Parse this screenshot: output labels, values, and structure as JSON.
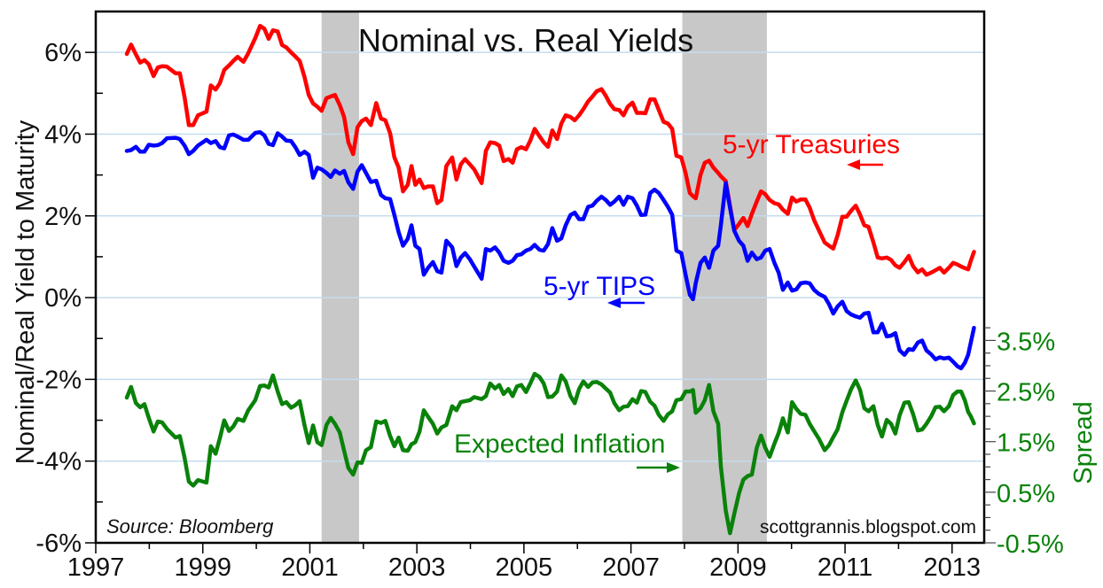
{
  "chart_data": {
    "type": "line",
    "title": "Nominal vs. Real Yields",
    "ylabel": "Nominal/Real Yield to Maturity",
    "y2label": "Spread",
    "source": "Source: Bloomberg",
    "credit": "scottgrannis.blogspot.com",
    "xlim": [
      1997,
      2013.6
    ],
    "ylim": [
      -6,
      7
    ],
    "y2lim": [
      -0.5,
      10
    ],
    "grid": "horizontal at left-axis major ticks",
    "x_ticks": [
      "1997",
      "1999",
      "2001",
      "2003",
      "2005",
      "2007",
      "2009",
      "2011",
      "2013"
    ],
    "y_ticks": [
      "-6%",
      "-4%",
      "-2%",
      "0%",
      "2%",
      "4%",
      "6%"
    ],
    "y_tick_values": [
      -6,
      -4,
      -2,
      0,
      2,
      4,
      6
    ],
    "y2_ticks": [
      "-0.5%",
      "0.5%",
      "1.5%",
      "2.5%",
      "3.5%"
    ],
    "y2_tick_values": [
      -0.5,
      0.5,
      1.5,
      2.5,
      3.5
    ],
    "recessions": [
      [
        2001.22,
        2001.92
      ],
      [
        2007.96,
        2009.54
      ]
    ],
    "annotations": {
      "treasury": "5-yr Treasuries",
      "tips": "5-yr TIPS",
      "spread": "Expected Inflation"
    },
    "colors": {
      "treasury": "#ff0000",
      "tips": "#0000ff",
      "spread": "#0a820a",
      "recession": "#c8c8c8",
      "grid": "#c4dcef"
    },
    "x": [
      1997.58,
      1997.66,
      1997.75,
      1997.83,
      1997.91,
      1997.99,
      1998.08,
      1998.16,
      1998.24,
      1998.33,
      1998.49,
      1998.57,
      1998.66,
      1998.74,
      1998.82,
      1998.91,
      1999.07,
      1999.15,
      1999.24,
      1999.32,
      1999.4,
      1999.49,
      1999.57,
      1999.65,
      1999.76,
      1999.85,
      1999.98,
      2000.07,
      2000.15,
      2000.23,
      2000.31,
      2000.4,
      2000.48,
      2000.56,
      2000.65,
      2000.73,
      2000.81,
      2000.9,
      2000.98,
      2001.06,
      2001.14,
      2001.22,
      2001.31,
      2001.39,
      2001.47,
      2001.56,
      2001.64,
      2001.72,
      2001.81,
      2001.89,
      2001.97,
      2002.05,
      2002.14,
      2002.24,
      2002.33,
      2002.41,
      2002.5,
      2002.58,
      2002.66,
      2002.74,
      2002.83,
      2002.9,
      2002.97,
      2003.05,
      2003.13,
      2003.21,
      2003.3,
      2003.38,
      2003.46,
      2003.55,
      2003.66,
      2003.74,
      2003.82,
      2003.9,
      2003.99,
      2004.07,
      2004.21,
      2004.29,
      2004.37,
      2004.46,
      2004.54,
      2004.62,
      2004.71,
      2004.79,
      2004.87,
      2004.95,
      2005.04,
      2005.12,
      2005.2,
      2005.29,
      2005.37,
      2005.45,
      2005.53,
      2005.62,
      2005.7,
      2005.78,
      2005.87,
      2005.95,
      2006.03,
      2006.11,
      2006.2,
      2006.28,
      2006.36,
      2006.45,
      2006.53,
      2006.61,
      2006.69,
      2006.78,
      2006.86,
      2006.94,
      2007.03,
      2007.11,
      2007.19,
      2007.27,
      2007.36,
      2007.44,
      2007.52,
      2007.61,
      2007.69,
      2007.77,
      2007.85,
      2007.94,
      2008.02,
      2008.1,
      2008.16,
      2008.21,
      2008.3,
      2008.38,
      2008.46,
      2008.54,
      2008.63,
      2008.68,
      2008.77,
      2008.85,
      2008.93,
      2009.02,
      2009.1,
      2009.18,
      2009.26,
      2009.35,
      2009.43,
      2009.51,
      2009.59,
      2009.68,
      2009.76,
      2009.84,
      2009.93,
      2010.01,
      2010.09,
      2010.17,
      2010.26,
      2010.34,
      2010.42,
      2010.51,
      2010.62,
      2010.7,
      2010.78,
      2010.86,
      2010.95,
      2011.03,
      2011.11,
      2011.2,
      2011.28,
      2011.36,
      2011.44,
      2011.53,
      2011.61,
      2011.69,
      2011.78,
      2011.86,
      2011.94,
      2012.02,
      2012.11,
      2012.19,
      2012.27,
      2012.36,
      2012.44,
      2012.52,
      2012.61,
      2012.69,
      2012.77,
      2012.85,
      2012.94,
      2013.02,
      2013.1,
      2013.17,
      2013.24,
      2013.3,
      2013.35,
      2013.41
    ],
    "series": [
      {
        "name": "5-yr Treasuries",
        "axis": "left",
        "values": [
          5.96,
          6.19,
          5.95,
          5.75,
          5.81,
          5.71,
          5.42,
          5.63,
          5.66,
          5.65,
          5.49,
          5.49,
          4.9,
          4.22,
          4.22,
          4.46,
          4.55,
          5.19,
          5.09,
          5.25,
          5.57,
          5.68,
          5.79,
          5.89,
          5.77,
          5.98,
          6.35,
          6.65,
          6.58,
          6.33,
          6.54,
          6.51,
          6.18,
          6.12,
          6.0,
          5.9,
          5.79,
          5.4,
          4.96,
          4.75,
          4.67,
          4.57,
          4.88,
          4.92,
          4.96,
          4.71,
          4.42,
          3.8,
          3.51,
          4.17,
          4.32,
          4.38,
          4.22,
          4.76,
          4.38,
          4.34,
          4.02,
          3.43,
          3.18,
          2.6,
          2.76,
          3.22,
          2.76,
          2.89,
          2.68,
          2.72,
          2.72,
          2.31,
          2.39,
          3.22,
          3.43,
          2.89,
          3.26,
          3.39,
          3.26,
          3.14,
          2.8,
          3.59,
          3.8,
          3.78,
          3.72,
          3.34,
          3.39,
          3.3,
          3.63,
          3.68,
          3.63,
          3.84,
          4.13,
          3.95,
          3.8,
          3.69,
          4.09,
          3.88,
          4.26,
          4.46,
          4.42,
          4.34,
          4.46,
          4.61,
          4.8,
          4.92,
          5.05,
          5.1,
          4.94,
          4.74,
          4.61,
          4.59,
          4.46,
          4.67,
          4.77,
          4.52,
          4.52,
          4.51,
          4.85,
          4.85,
          4.59,
          4.3,
          4.26,
          4.13,
          3.47,
          3.43,
          3.05,
          2.56,
          2.48,
          2.43,
          3.01,
          3.3,
          3.35,
          3.18,
          3.05,
          2.97,
          2.85,
          2.25,
          1.65,
          1.8,
          1.95,
          1.75,
          2.05,
          2.35,
          2.6,
          2.53,
          2.39,
          2.31,
          2.28,
          2.15,
          2.05,
          2.45,
          2.35,
          2.4,
          2.4,
          2.2,
          1.9,
          1.65,
          1.35,
          1.27,
          1.2,
          1.52,
          1.98,
          1.98,
          2.12,
          2.25,
          2.03,
          1.77,
          1.73,
          1.35,
          0.98,
          0.96,
          0.98,
          0.92,
          0.79,
          0.73,
          0.87,
          1.02,
          0.77,
          0.62,
          0.69,
          0.56,
          0.61,
          0.67,
          0.73,
          0.61,
          0.73,
          0.85,
          0.81,
          0.76,
          0.72,
          0.69,
          0.9,
          1.12
        ]
      },
      {
        "name": "5-yr TIPS",
        "axis": "left",
        "values": [
          3.59,
          3.61,
          3.69,
          3.57,
          3.57,
          3.74,
          3.72,
          3.73,
          3.78,
          3.9,
          3.91,
          3.88,
          3.72,
          3.51,
          3.59,
          3.72,
          3.86,
          3.78,
          3.83,
          3.68,
          3.65,
          3.97,
          3.99,
          3.94,
          3.86,
          3.86,
          4.03,
          4.05,
          3.97,
          3.76,
          3.73,
          4.02,
          3.94,
          3.84,
          3.83,
          3.68,
          3.49,
          3.57,
          3.49,
          2.93,
          3.18,
          3.14,
          3.05,
          2.95,
          3.11,
          3.03,
          3.1,
          2.82,
          2.66,
          3.08,
          3.24,
          3.05,
          2.83,
          2.86,
          2.51,
          2.43,
          2.41,
          2.02,
          1.6,
          1.27,
          1.44,
          1.77,
          1.27,
          1.19,
          0.56,
          0.73,
          0.87,
          0.65,
          0.61,
          1.39,
          1.23,
          0.77,
          0.98,
          1.09,
          0.94,
          0.76,
          0.46,
          1.19,
          1.15,
          1.23,
          1.1,
          0.9,
          0.85,
          0.9,
          1.04,
          1.06,
          1.15,
          1.19,
          1.29,
          1.17,
          1.15,
          1.31,
          1.7,
          1.39,
          1.45,
          1.77,
          2.02,
          2.08,
          1.92,
          1.92,
          2.22,
          2.25,
          2.37,
          2.47,
          2.39,
          2.27,
          2.35,
          2.47,
          2.27,
          2.47,
          2.43,
          2.25,
          2.02,
          2.03,
          2.56,
          2.64,
          2.56,
          2.39,
          2.22,
          2.03,
          1.15,
          1.09,
          0.56,
          0.07,
          -0.04,
          0.36,
          0.85,
          0.98,
          0.73,
          1.15,
          1.27,
          1.77,
          2.8,
          2.2,
          1.64,
          1.39,
          1.27,
          0.9,
          1.1,
          0.94,
          0.98,
          1.15,
          1.19,
          0.85,
          0.61,
          0.19,
          0.37,
          0.17,
          0.2,
          0.35,
          0.37,
          0.35,
          0.19,
          0.09,
          0.02,
          -0.16,
          -0.39,
          -0.22,
          -0.1,
          -0.33,
          -0.41,
          -0.46,
          -0.49,
          -0.39,
          -0.37,
          -0.85,
          -0.85,
          -0.64,
          -0.95,
          -0.93,
          -0.87,
          -1.29,
          -1.4,
          -1.26,
          -1.28,
          -1.1,
          -1.05,
          -1.29,
          -1.39,
          -1.51,
          -1.46,
          -1.49,
          -1.47,
          -1.57,
          -1.68,
          -1.73,
          -1.59,
          -1.4,
          -1.1,
          -0.74
        ]
      },
      {
        "name": "Expected Inflation",
        "axis": "right",
        "values": [
          2.37,
          2.58,
          2.26,
          2.18,
          2.24,
          1.97,
          1.7,
          1.9,
          1.88,
          1.75,
          1.58,
          1.61,
          1.18,
          0.71,
          0.63,
          0.74,
          0.69,
          1.41,
          1.26,
          1.57,
          1.92,
          1.71,
          1.8,
          1.95,
          1.91,
          2.12,
          2.32,
          2.6,
          2.61,
          2.57,
          2.81,
          2.49,
          2.24,
          2.28,
          2.17,
          2.22,
          2.3,
          1.83,
          1.47,
          1.82,
          1.49,
          1.43,
          1.83,
          1.97,
          1.85,
          1.68,
          1.32,
          0.98,
          0.85,
          1.09,
          1.08,
          1.33,
          1.39,
          1.9,
          1.87,
          1.91,
          1.61,
          1.41,
          1.58,
          1.33,
          1.32,
          1.45,
          1.49,
          1.7,
          2.12,
          1.99,
          1.85,
          1.66,
          1.78,
          1.83,
          2.2,
          2.12,
          2.28,
          2.3,
          2.32,
          2.38,
          2.34,
          2.4,
          2.65,
          2.55,
          2.62,
          2.44,
          2.54,
          2.4,
          2.59,
          2.62,
          2.48,
          2.65,
          2.84,
          2.78,
          2.65,
          2.38,
          2.39,
          2.49,
          2.81,
          2.69,
          2.4,
          2.26,
          2.54,
          2.69,
          2.58,
          2.67,
          2.68,
          2.63,
          2.55,
          2.47,
          2.26,
          2.12,
          2.19,
          2.2,
          2.34,
          2.27,
          2.5,
          2.48,
          2.29,
          2.21,
          2.03,
          1.91,
          2.04,
          2.1,
          2.32,
          2.34,
          2.49,
          2.49,
          2.52,
          2.07,
          2.16,
          2.32,
          2.62,
          2.1,
          1.85,
          1.01,
          0.14,
          -0.31,
          0.07,
          0.48,
          0.75,
          0.82,
          0.85,
          1.38,
          1.62,
          1.38,
          1.2,
          1.46,
          1.67,
          1.96,
          1.68,
          2.28,
          2.15,
          2.05,
          2.03,
          1.85,
          1.71,
          1.56,
          1.33,
          1.43,
          1.59,
          1.74,
          2.08,
          2.31,
          2.53,
          2.71,
          2.52,
          2.16,
          2.1,
          2.2,
          1.83,
          1.6,
          1.93,
          1.85,
          1.66,
          2.02,
          2.27,
          2.28,
          2.05,
          1.72,
          1.74,
          1.85,
          2.0,
          2.18,
          2.19,
          2.1,
          2.2,
          2.42,
          2.49,
          2.49,
          2.31,
          2.09,
          2.0,
          1.86
        ]
      }
    ]
  }
}
